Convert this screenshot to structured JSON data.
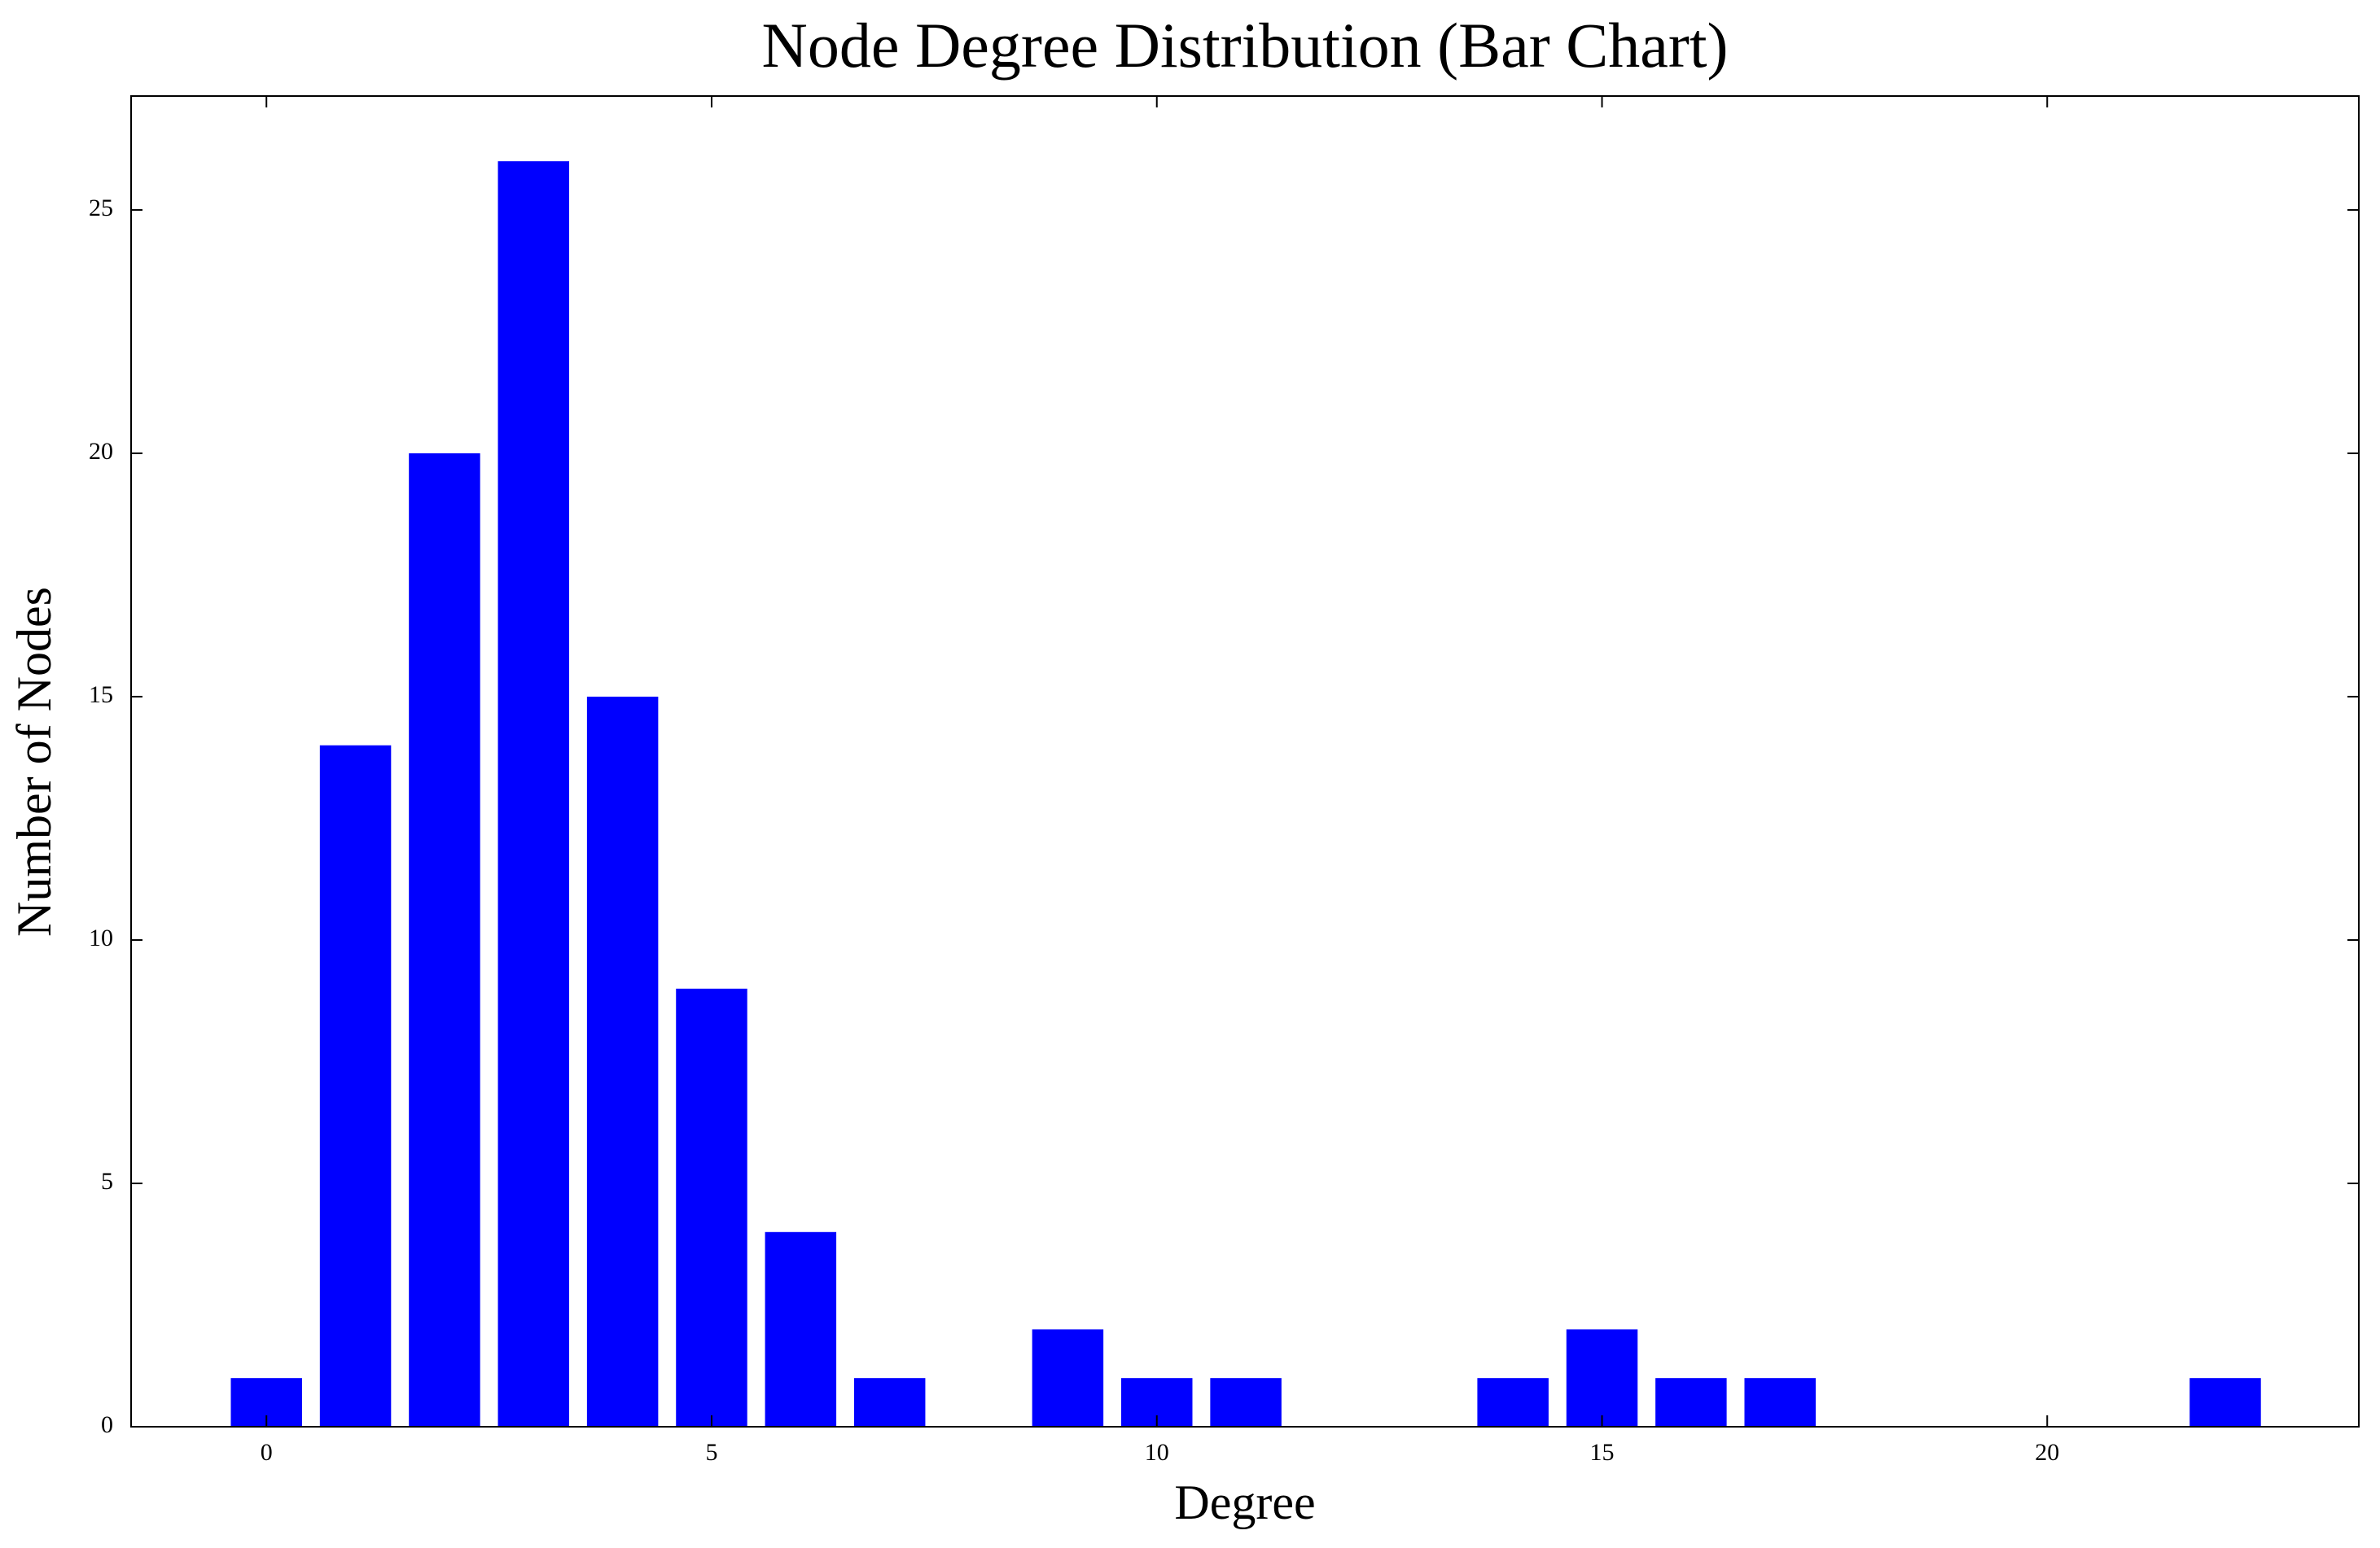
{
  "chart_data": {
    "type": "bar",
    "title": "Node Degree Distribution (Bar Chart)",
    "x_label": "Degree",
    "y_label": "Number of Nodes",
    "x": [
      0,
      1,
      2,
      3,
      4,
      5,
      6,
      7,
      9,
      10,
      11,
      14,
      15,
      16,
      17,
      22
    ],
    "values": [
      1,
      14,
      20,
      26,
      15,
      9,
      4,
      1,
      2,
      1,
      1,
      1,
      2,
      1,
      1,
      1
    ],
    "color": "#0000ff",
    "xlim": [
      -1.52,
      23.5
    ],
    "xticks": [
      0,
      5,
      10,
      15,
      20
    ],
    "ylim": [
      0,
      27.34
    ],
    "yticks": [
      0,
      5,
      10,
      15,
      20,
      25
    ],
    "grid": false
  }
}
